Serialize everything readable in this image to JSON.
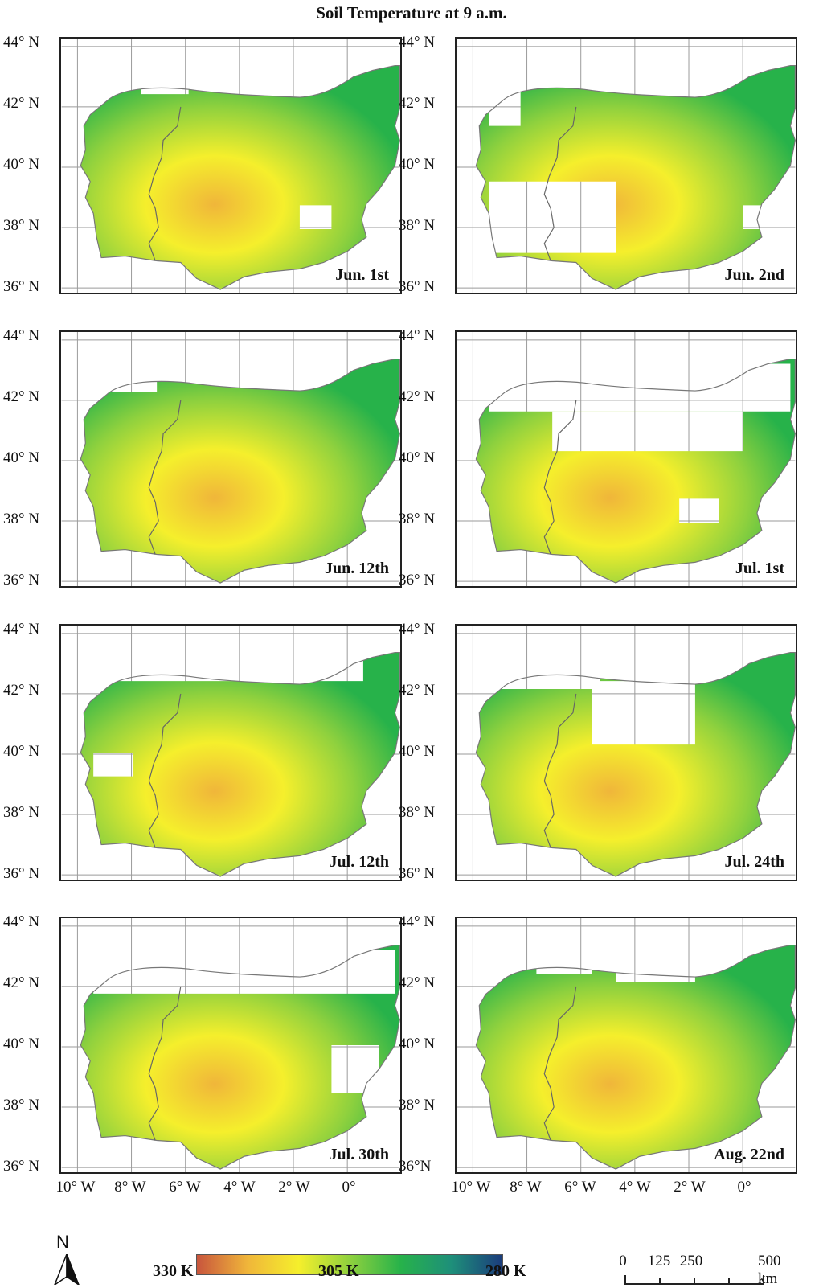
{
  "title": "Soil Temperature at 9 a.m.",
  "panels": [
    {
      "label": "Jun. 1st"
    },
    {
      "label": "Jun. 2nd"
    },
    {
      "label": "Jun. 12th"
    },
    {
      "label": "Jul. 1st"
    },
    {
      "label": "Jul. 12th"
    },
    {
      "label": "Jul. 24th"
    },
    {
      "label": "Jul. 30th"
    },
    {
      "label": "Aug. 22nd"
    }
  ],
  "lat_ticks": [
    "44° N",
    "42° N",
    "40° N",
    "38° N",
    "36° N"
  ],
  "lat_ticks_last": [
    "44° N",
    "42° N",
    "40° N",
    "38° N",
    "36°N"
  ],
  "lon_ticks": [
    "10° W",
    "8° W",
    "6° W",
    "4° W",
    "2° W",
    "0°"
  ],
  "legend": {
    "north": "N",
    "colorbar": {
      "min_label": "330 K",
      "mid_label": "305 K",
      "max_label": "280 K",
      "colors": [
        "#c8553d",
        "#f0b63a",
        "#f5ef2c",
        "#8fd13e",
        "#27b24a",
        "#1e8f7a",
        "#1b3c7c"
      ]
    },
    "scale": {
      "labels": [
        "0",
        "125",
        "250",
        "500 km"
      ]
    }
  }
}
